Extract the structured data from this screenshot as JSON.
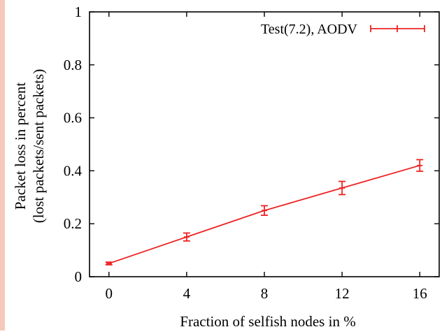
{
  "chart_data": {
    "type": "line",
    "title": "",
    "xlabel": "Fraction of selfish nodes in %",
    "ylabel": [
      "Packet loss in percent",
      "(lost packets/sent packets)"
    ],
    "xlim": [
      -1,
      17
    ],
    "ylim": [
      0,
      1
    ],
    "x_ticks": [
      0,
      4,
      8,
      12,
      16
    ],
    "y_ticks": [
      0,
      0.2,
      0.4,
      0.6,
      0.8,
      1
    ],
    "x_tick_labels": [
      "0",
      "4",
      "8",
      "12",
      "16"
    ],
    "y_tick_labels": [
      "0",
      "0.2",
      "0.4",
      "0.6",
      "0.8",
      "1"
    ],
    "legend": {
      "position": "top-right",
      "entries": [
        "Test(7.2), AODV"
      ]
    },
    "grid": false,
    "series": [
      {
        "name": "Test(7.2), AODV",
        "color": "#ee2222",
        "x": [
          0,
          4,
          8,
          12,
          16
        ],
        "y": [
          0.05,
          0.15,
          0.25,
          0.335,
          0.42
        ],
        "error": [
          0.005,
          0.015,
          0.018,
          0.025,
          0.022
        ]
      }
    ]
  }
}
